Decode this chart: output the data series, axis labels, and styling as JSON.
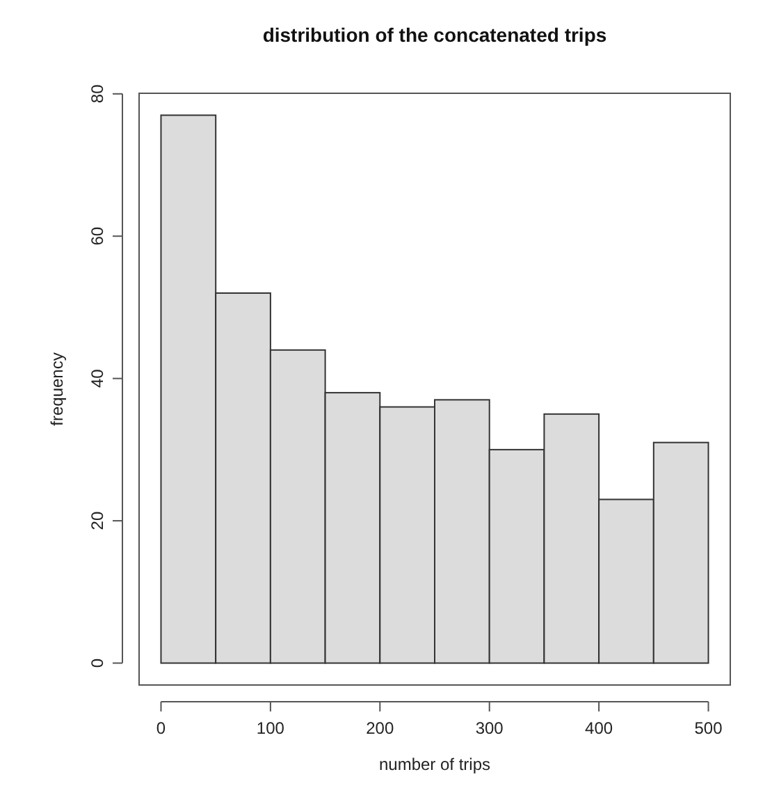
{
  "chart_data": {
    "type": "histogram",
    "title": "distribution of the concatenated trips",
    "xlabel": "number of trips",
    "ylabel": "frequency",
    "bins": [
      0,
      50,
      100,
      150,
      200,
      250,
      300,
      350,
      400,
      450,
      500
    ],
    "values": [
      77,
      52,
      44,
      38,
      36,
      37,
      30,
      35,
      23,
      31
    ],
    "color": "#dcdcdc",
    "xlim": [
      -20,
      520
    ],
    "ylim": [
      -3.08,
      80.08
    ],
    "xticks": [
      0,
      100,
      200,
      300,
      400,
      500
    ],
    "yticks": [
      0,
      20,
      40,
      60,
      80
    ],
    "grid": false
  }
}
